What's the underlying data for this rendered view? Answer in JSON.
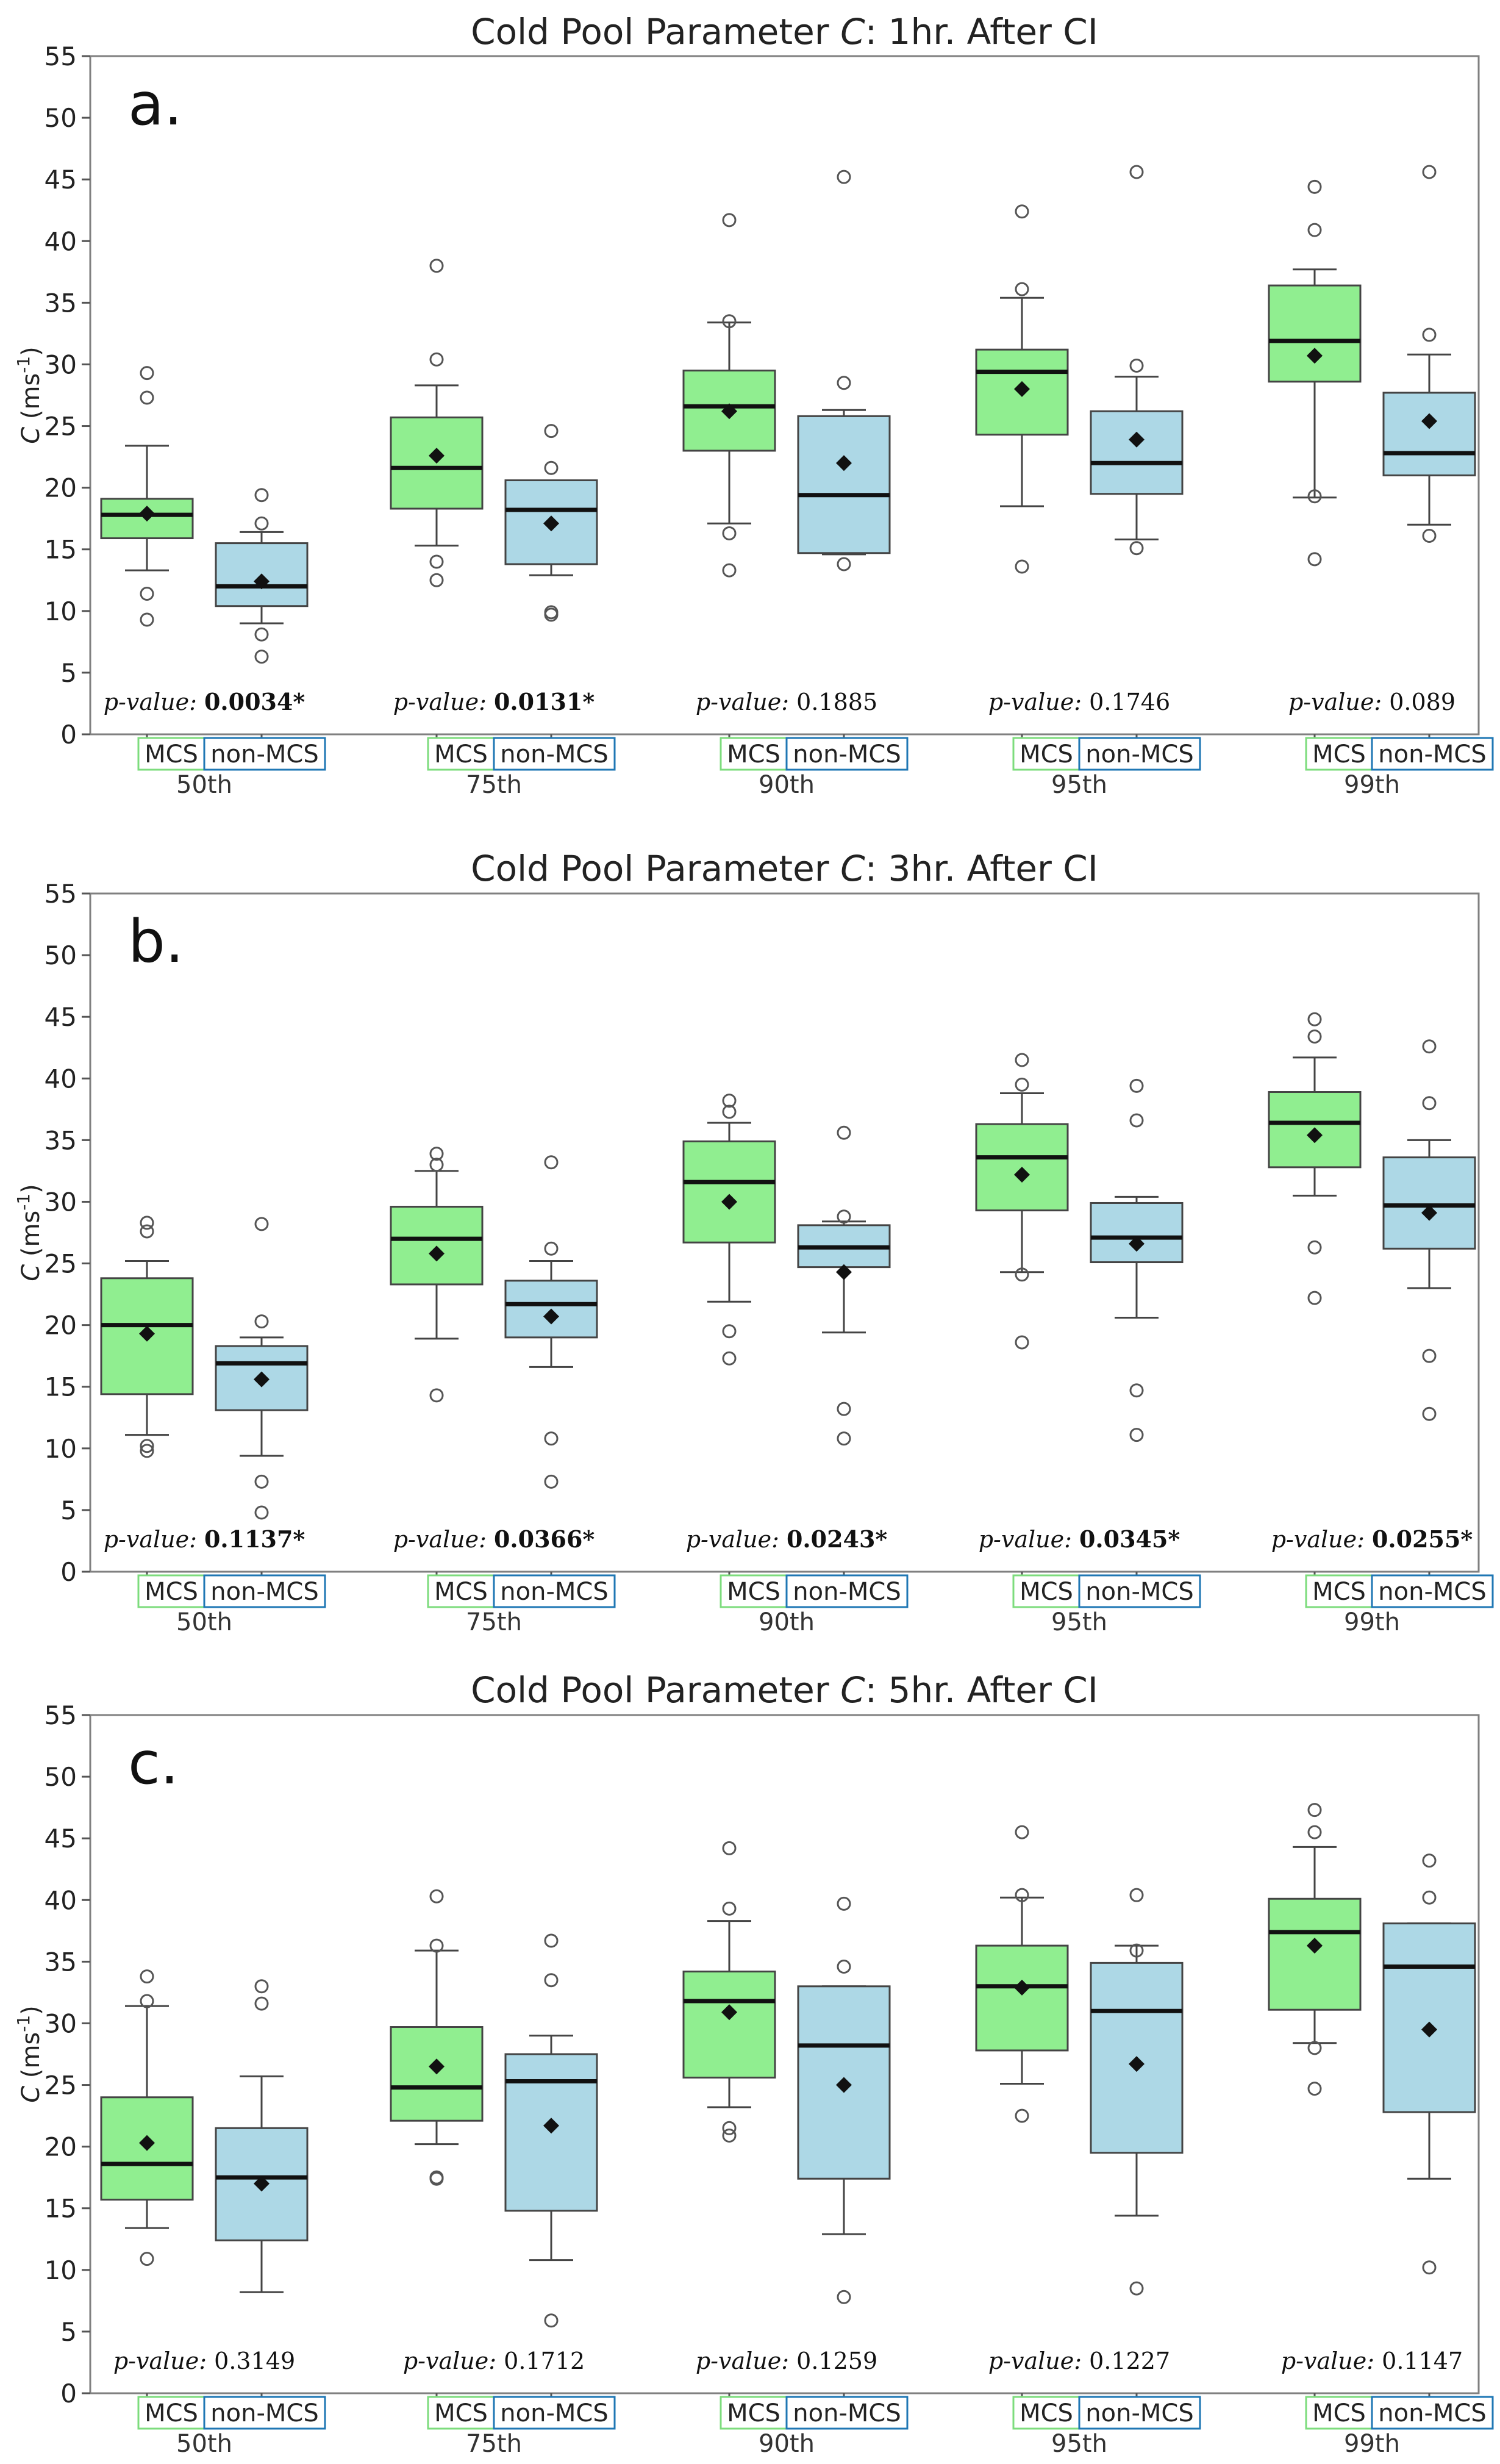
{
  "chart_data": [
    {
      "type": "box",
      "title_prefix": "Cold Pool Parameter ",
      "title_var": "C",
      "title_suffix": ": 1hr. After CI",
      "panel_label": "a.",
      "ylabel_var": "C",
      "ylabel_units": "(ms",
      "ylabel_exp": "-1",
      "ylabel_close": ")",
      "ylim": [
        0,
        55
      ],
      "yticks": [
        "0",
        "5",
        "10",
        "15",
        "20",
        "25",
        "30",
        "35",
        "40",
        "45",
        "50",
        "55"
      ],
      "categories": [
        "50th",
        "75th",
        "90th",
        "95th",
        "99th"
      ],
      "series_labels": [
        "MCS",
        "non-MCS"
      ],
      "colors": {
        "MCS": "#90ee90",
        "non-MCS": "#add8e6",
        "MCS_label_border": "#7ddc7d",
        "nonMCS_label_border": "#1f77b4"
      },
      "pvalue_label": "p-value:",
      "pvalues": [
        "0.0034*",
        "0.0131*",
        "0.1885",
        "0.1746",
        "0.089"
      ],
      "pvalue_bold": [
        true,
        true,
        false,
        false,
        false
      ],
      "boxes": [
        {
          "category": "50th",
          "series": "MCS",
          "whislo": 13.3,
          "q1": 15.9,
          "median": 17.8,
          "q3": 19.1,
          "whishi": 23.4,
          "mean": 17.9,
          "fliers": [
            9.3,
            11.4,
            27.3,
            29.3
          ]
        },
        {
          "category": "50th",
          "series": "non-MCS",
          "whislo": 9.0,
          "q1": 10.4,
          "median": 12.0,
          "q3": 15.5,
          "whishi": 16.4,
          "mean": 12.4,
          "fliers": [
            6.3,
            8.1,
            17.1,
            19.4
          ]
        },
        {
          "category": "75th",
          "series": "MCS",
          "whislo": 15.3,
          "q1": 18.3,
          "median": 21.6,
          "q3": 25.7,
          "whishi": 28.3,
          "mean": 22.6,
          "fliers": [
            12.5,
            14.0,
            30.4,
            38.0
          ]
        },
        {
          "category": "75th",
          "series": "non-MCS",
          "whislo": 12.9,
          "q1": 13.8,
          "median": 18.2,
          "q3": 20.6,
          "whishi": 20.6,
          "mean": 17.1,
          "fliers": [
            9.7,
            9.9,
            21.6,
            24.6
          ]
        },
        {
          "category": "90th",
          "series": "MCS",
          "whislo": 17.1,
          "q1": 23.0,
          "median": 26.6,
          "q3": 29.5,
          "whishi": 33.4,
          "mean": 26.2,
          "fliers": [
            13.3,
            16.3,
            33.5,
            41.7
          ]
        },
        {
          "category": "90th",
          "series": "non-MCS",
          "whislo": 14.6,
          "q1": 14.7,
          "median": 19.4,
          "q3": 25.8,
          "whishi": 26.3,
          "mean": 22.0,
          "fliers": [
            13.8,
            28.5,
            45.2
          ]
        },
        {
          "category": "95th",
          "series": "MCS",
          "whislo": 18.5,
          "q1": 24.3,
          "median": 29.4,
          "q3": 31.2,
          "whishi": 35.4,
          "mean": 28.0,
          "fliers": [
            13.6,
            36.1,
            42.4
          ]
        },
        {
          "category": "95th",
          "series": "non-MCS",
          "whislo": 15.8,
          "q1": 19.5,
          "median": 22.0,
          "q3": 26.2,
          "whishi": 29.0,
          "mean": 23.9,
          "fliers": [
            15.1,
            29.9,
            45.6
          ]
        },
        {
          "category": "99th",
          "series": "MCS",
          "whislo": 19.2,
          "q1": 28.6,
          "median": 31.9,
          "q3": 36.4,
          "whishi": 37.7,
          "mean": 30.7,
          "fliers": [
            14.2,
            19.3,
            40.9,
            44.4
          ]
        },
        {
          "category": "99th",
          "series": "non-MCS",
          "whislo": 17.0,
          "q1": 21.0,
          "median": 22.8,
          "q3": 27.7,
          "whishi": 30.8,
          "mean": 25.4,
          "fliers": [
            16.1,
            32.4,
            45.6
          ]
        }
      ]
    },
    {
      "type": "box",
      "title_prefix": "Cold Pool Parameter ",
      "title_var": "C",
      "title_suffix": ": 3hr. After CI",
      "panel_label": "b.",
      "ylabel_var": "C",
      "ylabel_units": "(ms",
      "ylabel_exp": "-1",
      "ylabel_close": ")",
      "ylim": [
        0,
        55
      ],
      "yticks": [
        "0",
        "5",
        "10",
        "15",
        "20",
        "25",
        "30",
        "35",
        "40",
        "45",
        "50",
        "55"
      ],
      "categories": [
        "50th",
        "75th",
        "90th",
        "95th",
        "99th"
      ],
      "series_labels": [
        "MCS",
        "non-MCS"
      ],
      "colors": {
        "MCS": "#90ee90",
        "non-MCS": "#add8e6",
        "MCS_label_border": "#7ddc7d",
        "nonMCS_label_border": "#1f77b4"
      },
      "pvalue_label": "p-value:",
      "pvalues": [
        "0.1137*",
        "0.0366*",
        "0.0243*",
        "0.0345*",
        "0.0255*"
      ],
      "pvalue_bold": [
        true,
        true,
        true,
        true,
        true
      ],
      "boxes": [
        {
          "category": "50th",
          "series": "MCS",
          "whislo": 11.1,
          "q1": 14.4,
          "median": 20.0,
          "q3": 23.8,
          "whishi": 25.2,
          "mean": 19.3,
          "fliers": [
            9.8,
            10.2,
            27.6,
            28.3
          ]
        },
        {
          "category": "50th",
          "series": "non-MCS",
          "whislo": 9.4,
          "q1": 13.1,
          "median": 16.9,
          "q3": 18.3,
          "whishi": 19.0,
          "mean": 15.6,
          "fliers": [
            4.8,
            7.3,
            20.3,
            28.2
          ]
        },
        {
          "category": "75th",
          "series": "MCS",
          "whislo": 18.9,
          "q1": 23.3,
          "median": 27.0,
          "q3": 29.6,
          "whishi": 32.5,
          "mean": 25.8,
          "fliers": [
            14.3,
            33.0,
            33.9
          ]
        },
        {
          "category": "75th",
          "series": "non-MCS",
          "whislo": 16.6,
          "q1": 19.0,
          "median": 21.7,
          "q3": 23.6,
          "whishi": 25.2,
          "mean": 20.7,
          "fliers": [
            7.3,
            10.8,
            26.2,
            33.2
          ]
        },
        {
          "category": "90th",
          "series": "MCS",
          "whislo": 21.9,
          "q1": 26.7,
          "median": 31.6,
          "q3": 34.9,
          "whishi": 36.4,
          "mean": 30.0,
          "fliers": [
            17.3,
            19.5,
            37.3,
            38.2
          ]
        },
        {
          "category": "90th",
          "series": "non-MCS",
          "whislo": 19.4,
          "q1": 24.7,
          "median": 26.3,
          "q3": 28.1,
          "whishi": 28.4,
          "mean": 24.3,
          "fliers": [
            10.8,
            13.2,
            28.8,
            35.6
          ]
        },
        {
          "category": "95th",
          "series": "MCS",
          "whislo": 24.3,
          "q1": 29.3,
          "median": 33.6,
          "q3": 36.3,
          "whishi": 38.8,
          "mean": 32.2,
          "fliers": [
            18.6,
            24.1,
            39.5,
            41.5
          ]
        },
        {
          "category": "95th",
          "series": "non-MCS",
          "whislo": 20.6,
          "q1": 25.1,
          "median": 27.1,
          "q3": 29.9,
          "whishi": 30.4,
          "mean": 26.6,
          "fliers": [
            11.1,
            14.7,
            36.6,
            39.4
          ]
        },
        {
          "category": "99th",
          "series": "MCS",
          "whislo": 30.5,
          "q1": 32.8,
          "median": 36.4,
          "q3": 38.9,
          "whishi": 41.7,
          "mean": 35.4,
          "fliers": [
            22.2,
            26.3,
            43.4,
            44.8
          ]
        },
        {
          "category": "99th",
          "series": "non-MCS",
          "whislo": 23.0,
          "q1": 26.2,
          "median": 29.7,
          "q3": 33.6,
          "whishi": 35.0,
          "mean": 29.1,
          "fliers": [
            12.8,
            17.5,
            38.0,
            42.6
          ]
        }
      ]
    },
    {
      "type": "box",
      "title_prefix": "Cold Pool Parameter ",
      "title_var": "C",
      "title_suffix": ": 5hr. After CI",
      "panel_label": "c.",
      "ylabel_var": "C",
      "ylabel_units": "(ms",
      "ylabel_exp": "-1",
      "ylabel_close": ")",
      "ylim": [
        0,
        55
      ],
      "yticks": [
        "0",
        "5",
        "10",
        "15",
        "20",
        "25",
        "30",
        "35",
        "40",
        "45",
        "50",
        "55"
      ],
      "categories": [
        "50th",
        "75th",
        "90th",
        "95th",
        "99th"
      ],
      "series_labels": [
        "MCS",
        "non-MCS"
      ],
      "colors": {
        "MCS": "#90ee90",
        "non-MCS": "#add8e6",
        "MCS_label_border": "#7ddc7d",
        "nonMCS_label_border": "#1f77b4"
      },
      "pvalue_label": "p-value:",
      "pvalues": [
        "0.3149",
        "0.1712",
        "0.1259",
        "0.1227",
        "0.1147"
      ],
      "pvalue_bold": [
        false,
        false,
        false,
        false,
        false
      ],
      "boxes": [
        {
          "category": "50th",
          "series": "MCS",
          "whislo": 13.4,
          "q1": 15.7,
          "median": 18.6,
          "q3": 24.0,
          "whishi": 31.4,
          "mean": 20.3,
          "fliers": [
            10.9,
            31.8,
            33.8
          ]
        },
        {
          "category": "50th",
          "series": "non-MCS",
          "whislo": 8.2,
          "q1": 12.4,
          "median": 17.5,
          "q3": 21.5,
          "whishi": 25.7,
          "mean": 17.0,
          "fliers": [
            31.6,
            33.0
          ]
        },
        {
          "category": "75th",
          "series": "MCS",
          "whislo": 20.2,
          "q1": 22.1,
          "median": 24.8,
          "q3": 29.7,
          "whishi": 35.9,
          "mean": 26.5,
          "fliers": [
            17.4,
            17.5,
            36.3,
            40.3
          ]
        },
        {
          "category": "75th",
          "series": "non-MCS",
          "whislo": 10.8,
          "q1": 14.8,
          "median": 25.3,
          "q3": 27.5,
          "whishi": 29.0,
          "mean": 21.7,
          "fliers": [
            5.9,
            33.5,
            36.7
          ]
        },
        {
          "category": "90th",
          "series": "MCS",
          "whislo": 23.2,
          "q1": 25.6,
          "median": 31.8,
          "q3": 34.2,
          "whishi": 38.3,
          "mean": 30.9,
          "fliers": [
            20.9,
            21.5,
            39.3,
            44.2
          ]
        },
        {
          "category": "90th",
          "series": "non-MCS",
          "whislo": 12.9,
          "q1": 17.4,
          "median": 28.2,
          "q3": 33.0,
          "whishi": 33.0,
          "mean": 25.0,
          "fliers": [
            7.8,
            34.6,
            39.7
          ]
        },
        {
          "category": "95th",
          "series": "MCS",
          "whislo": 25.1,
          "q1": 27.8,
          "median": 33.0,
          "q3": 36.3,
          "whishi": 40.2,
          "mean": 32.9,
          "fliers": [
            22.5,
            40.4,
            45.5
          ]
        },
        {
          "category": "95th",
          "series": "non-MCS",
          "whislo": 14.4,
          "q1": 19.5,
          "median": 31.0,
          "q3": 34.9,
          "whishi": 36.3,
          "mean": 26.7,
          "fliers": [
            8.5,
            35.9,
            40.4
          ]
        },
        {
          "category": "99th",
          "series": "MCS",
          "whislo": 28.4,
          "q1": 31.1,
          "median": 37.4,
          "q3": 40.1,
          "whishi": 44.3,
          "mean": 36.3,
          "fliers": [
            24.7,
            28.0,
            45.5,
            47.3
          ]
        },
        {
          "category": "99th",
          "series": "non-MCS",
          "whislo": 17.4,
          "q1": 22.8,
          "median": 34.6,
          "q3": 38.1,
          "whishi": 38.1,
          "mean": 29.5,
          "fliers": [
            10.2,
            40.2,
            43.2
          ]
        }
      ]
    }
  ]
}
